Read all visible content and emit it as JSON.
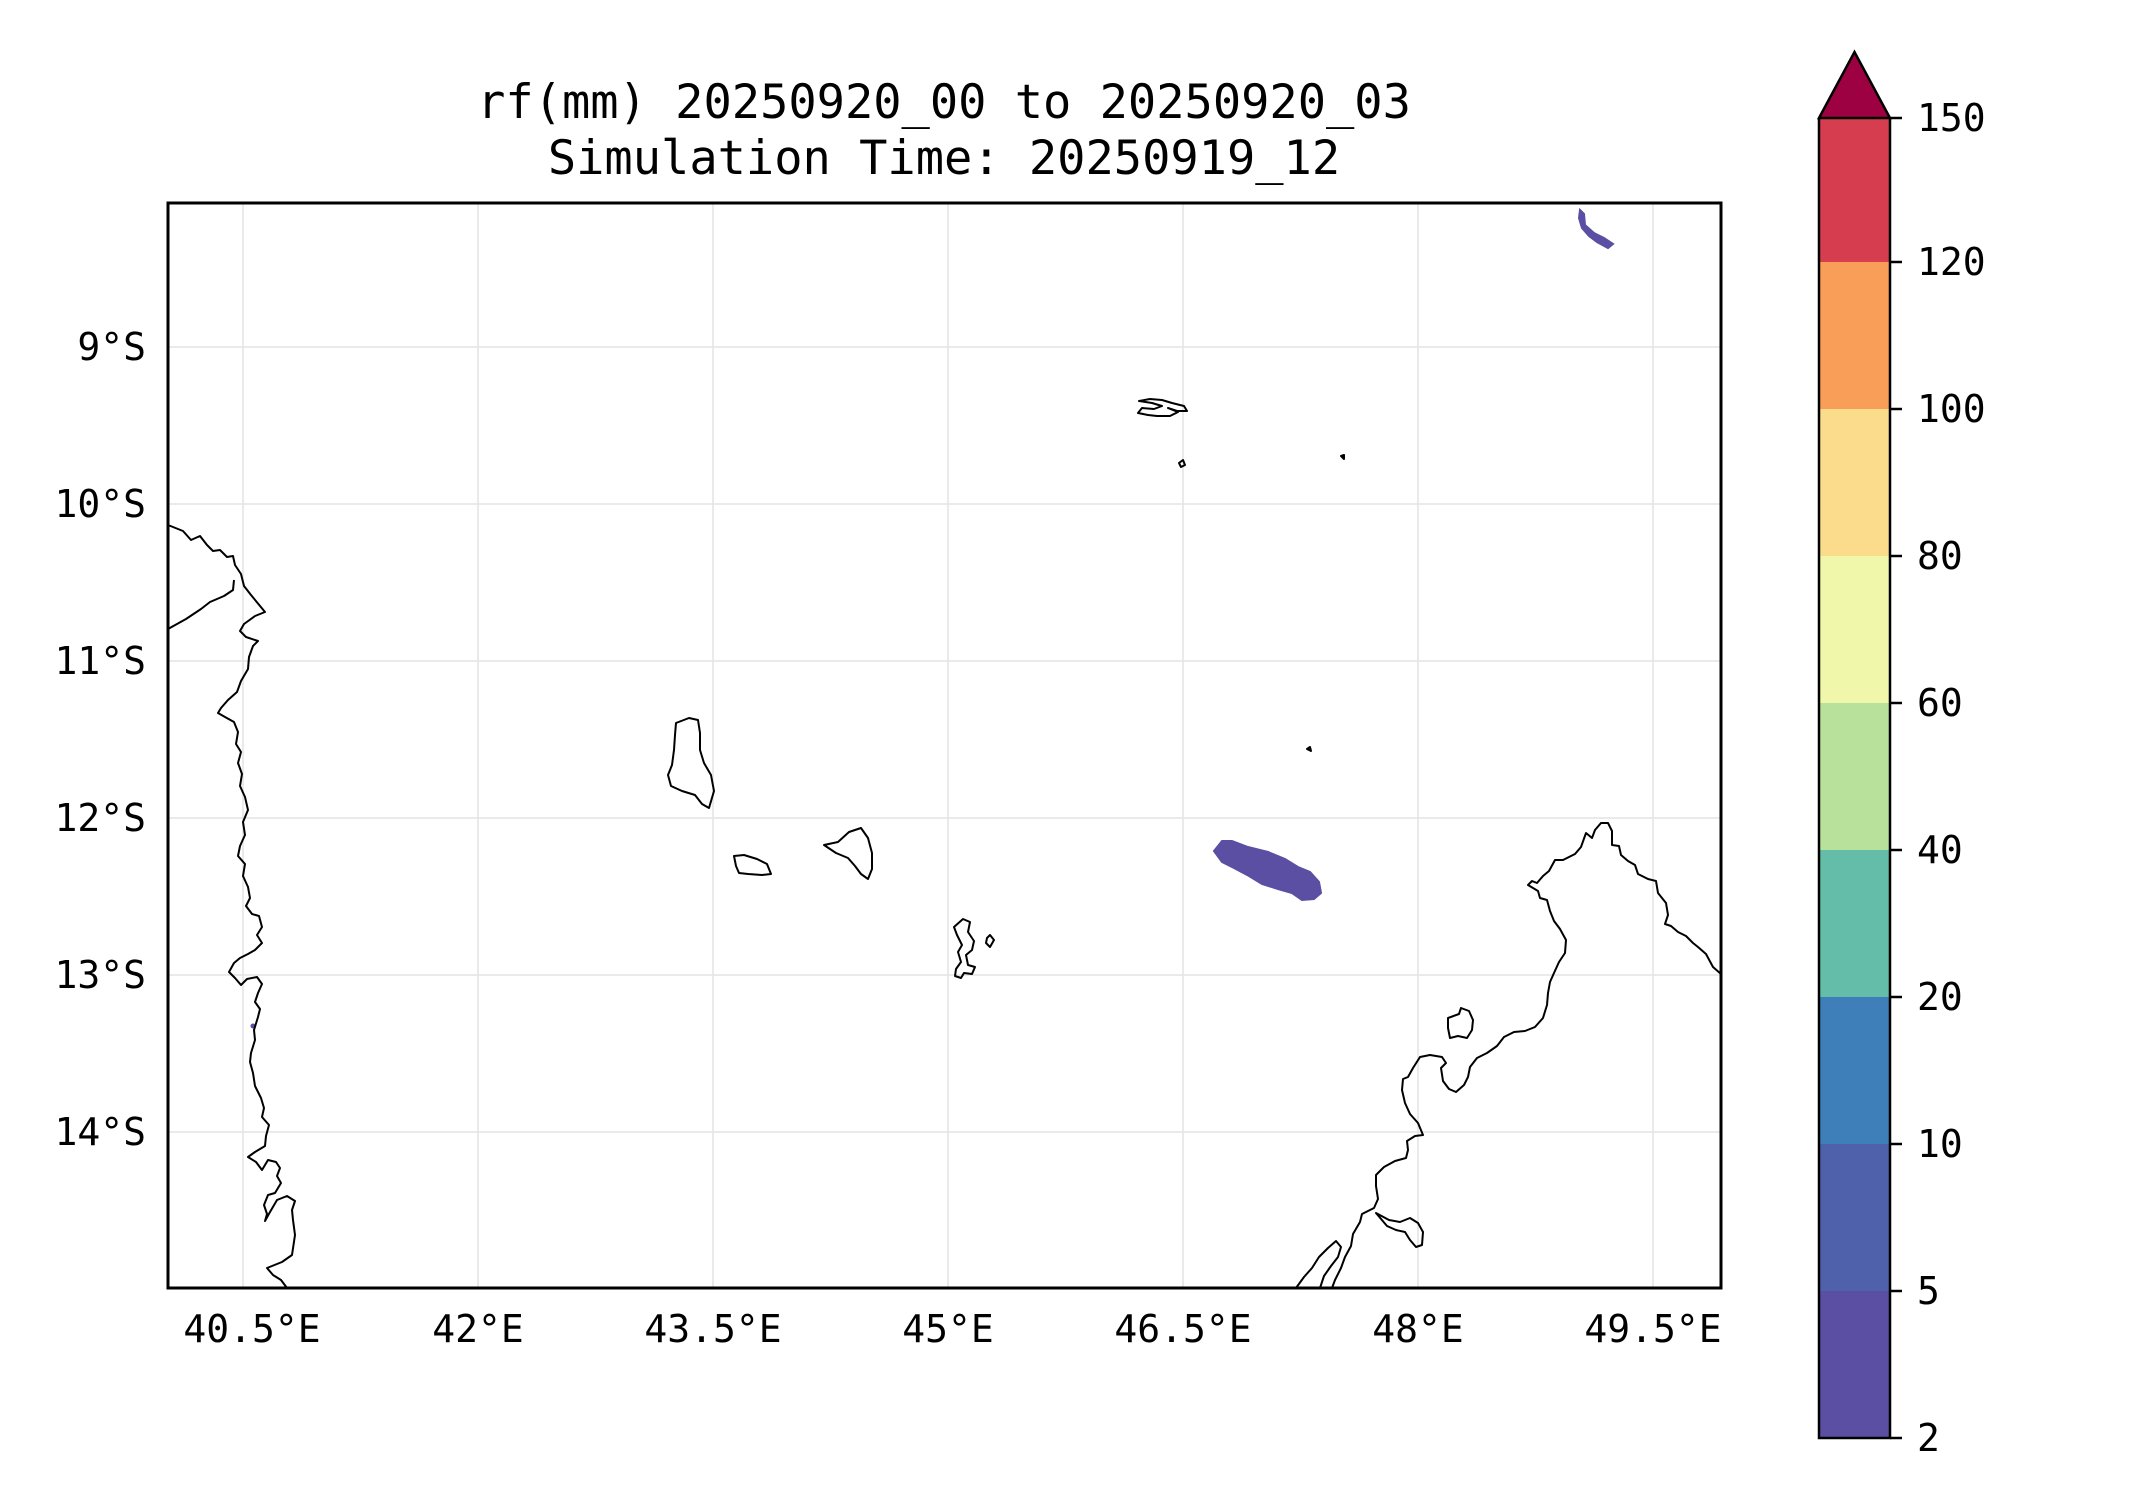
{
  "title": {
    "line1": "rf(mm) 20250920_00 to 20250920_03",
    "line2": "Simulation Time: 20250919_12"
  },
  "axes": {
    "x_ticks": [
      "40.5°E",
      "42°E",
      "43.5°E",
      "45°E",
      "46.5°E",
      "48°E",
      "49.5°E"
    ],
    "y_ticks": [
      "9°S",
      "10°S",
      "11°S",
      "12°S",
      "13°S",
      "14°S"
    ],
    "lon_range": [
      40.0,
      50.0
    ],
    "lat_range": [
      -15.0,
      -8.1
    ],
    "grid": true
  },
  "colorbar": {
    "levels": [
      "2",
      "5",
      "10",
      "20",
      "40",
      "60",
      "80",
      "100",
      "120",
      "150"
    ],
    "colors": [
      "#5a4fa2",
      "#5061ac",
      "#3f7fb9",
      "#63bda8",
      "#b8e29c",
      "#f1f7aa",
      "#fbdc8d",
      "#f89e59",
      "#d63e4f",
      "#9e0142"
    ],
    "extend": "max"
  },
  "features": {
    "coastline_color": "#000000",
    "rain_color": "#5a4fa2"
  }
}
